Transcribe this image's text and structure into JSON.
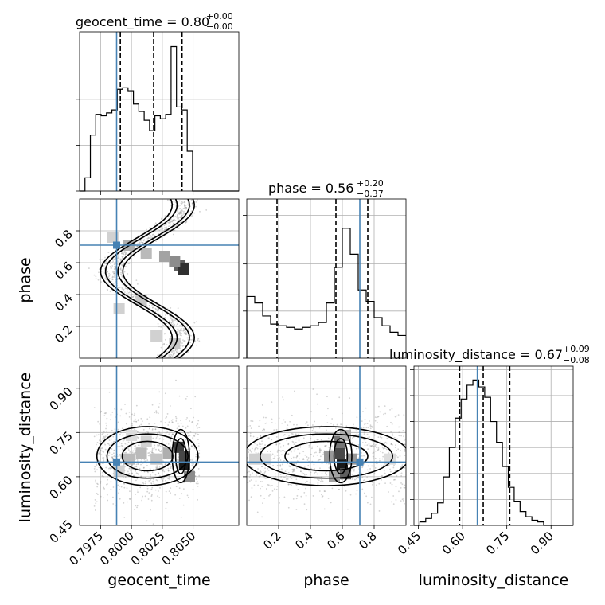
{
  "chart_data": {
    "type": "corner",
    "parameters": [
      "geocent_time",
      "phase",
      "luminosity_distance"
    ],
    "truth": {
      "geocent_time": 0.7988,
      "phase": 0.71,
      "luminosity_distance": 0.65
    },
    "titles": {
      "geocent_time": {
        "label": "geocent_time = 0.80",
        "plus": "+0.00",
        "minus": "−0.00"
      },
      "phase": {
        "label": "phase = 0.56",
        "plus": "+0.20",
        "minus": "−0.37"
      },
      "luminosity_distance": {
        "label": "luminosity_distance = 0.67",
        "plus": "+0.09",
        "minus": "−0.08"
      }
    },
    "axis_labels": {
      "geocent_time": "geocent_time",
      "phase": "phase",
      "luminosity_distance": "luminosity_distance"
    },
    "ranges": {
      "geocent_time": [
        0.7958,
        0.8087
      ],
      "phase": [
        0.0,
        1.0
      ],
      "luminosity_distance": [
        0.435,
        0.975
      ]
    },
    "ticks": {
      "geocent_time": {
        "values": [
          0.7975,
          0.8,
          0.8025,
          0.805
        ],
        "labels": [
          "0.7975",
          "0.8000",
          "0.8025",
          "0.8050"
        ]
      },
      "phase": {
        "values": [
          0.2,
          0.4,
          0.6,
          0.8
        ],
        "labels": [
          "0.2",
          "0.4",
          "0.6",
          "0.8"
        ]
      },
      "luminosity_distance": {
        "values": [
          0.45,
          0.6,
          0.75,
          0.9
        ],
        "labels": [
          "0.45",
          "0.60",
          "0.75",
          "0.90"
        ]
      }
    },
    "quantiles": {
      "geocent_time": [
        0.7991,
        0.8018,
        0.8041
      ],
      "phase": [
        0.19,
        0.56,
        0.76
      ],
      "luminosity_distance": [
        0.59,
        0.67,
        0.76
      ]
    },
    "histograms": {
      "geocent_time": {
        "x0": 0.7958,
        "bin": 0.000436,
        "counts": [
          0.0,
          0.09,
          0.38,
          0.52,
          0.51,
          0.53,
          0.55,
          0.69,
          0.7,
          0.68,
          0.59,
          0.54,
          0.48,
          0.41,
          0.51,
          0.49,
          0.52,
          0.98,
          0.57,
          0.55,
          0.27,
          0.0,
          0.0,
          0.0,
          0.0,
          0.0,
          0.0,
          0.0,
          0.0,
          0.0
        ]
      },
      "phase": {
        "x0": 0.0,
        "bin": 0.05,
        "counts": [
          0.38,
          0.34,
          0.26,
          0.21,
          0.2,
          0.19,
          0.18,
          0.19,
          0.2,
          0.22,
          0.34,
          0.56,
          0.8,
          0.64,
          0.42,
          0.35,
          0.25,
          0.2,
          0.16,
          0.14
        ]
      },
      "luminosity_distance": {
        "x0": 0.435,
        "bin": 0.02,
        "counts": [
          0.0,
          0.02,
          0.04,
          0.07,
          0.13,
          0.28,
          0.45,
          0.62,
          0.73,
          0.81,
          0.84,
          0.8,
          0.74,
          0.6,
          0.48,
          0.34,
          0.22,
          0.14,
          0.08,
          0.05,
          0.03,
          0.02,
          0.0,
          0.0,
          0.0,
          0.0,
          0.0
        ]
      }
    },
    "hist_ylim": {
      "geocent_time": 1.08,
      "phase": 0.98,
      "luminosity_distance": 0.92
    },
    "hist_yticks": {
      "geocent_time": [
        0.0,
        0.31,
        0.62
      ],
      "phase": [
        0.0,
        0.29,
        0.58,
        0.88
      ],
      "luminosity_distance": [
        0.0,
        0.15,
        0.3,
        0.45,
        0.6,
        0.75,
        0.9
      ]
    },
    "density_cells": {
      "phase_vs_geocent_time": [
        {
          "x": 0.8039,
          "y": 0.58,
          "v": 0.7
        },
        {
          "x": 0.8042,
          "y": 0.56,
          "v": 0.9
        },
        {
          "x": 0.8035,
          "y": 0.61,
          "v": 0.5
        },
        {
          "x": 0.8027,
          "y": 0.64,
          "v": 0.4
        },
        {
          "x": 0.8012,
          "y": 0.66,
          "v": 0.3
        },
        {
          "x": 0.7998,
          "y": 0.71,
          "v": 0.35
        },
        {
          "x": 0.7985,
          "y": 0.76,
          "v": 0.2
        },
        {
          "x": 0.799,
          "y": 0.31,
          "v": 0.2
        },
        {
          "x": 0.8008,
          "y": 0.36,
          "v": 0.25
        },
        {
          "x": 0.802,
          "y": 0.14,
          "v": 0.2
        },
        {
          "x": 0.8035,
          "y": 0.09,
          "v": 0.25
        }
      ],
      "luminosity_distance_vs_geocent_time": [
        {
          "x": 0.8038,
          "y": 0.7,
          "v": 0.85
        },
        {
          "x": 0.8043,
          "y": 0.64,
          "v": 1.0
        },
        {
          "x": 0.8043,
          "y": 0.67,
          "v": 0.8
        },
        {
          "x": 0.8047,
          "y": 0.6,
          "v": 0.5
        },
        {
          "x": 0.803,
          "y": 0.68,
          "v": 0.35
        },
        {
          "x": 0.802,
          "y": 0.66,
          "v": 0.25
        },
        {
          "x": 0.8008,
          "y": 0.68,
          "v": 0.3
        },
        {
          "x": 0.7998,
          "y": 0.66,
          "v": 0.3
        },
        {
          "x": 0.799,
          "y": 0.62,
          "v": 0.2
        },
        {
          "x": 0.8012,
          "y": 0.72,
          "v": 0.2
        },
        {
          "x": 0.8,
          "y": 0.74,
          "v": 0.15
        }
      ],
      "luminosity_distance_vs_phase": [
        {
          "x": 0.58,
          "y": 0.68,
          "v": 0.8
        },
        {
          "x": 0.6,
          "y": 0.64,
          "v": 1.0
        },
        {
          "x": 0.58,
          "y": 0.72,
          "v": 0.6
        },
        {
          "x": 0.62,
          "y": 0.61,
          "v": 0.7
        },
        {
          "x": 0.52,
          "y": 0.67,
          "v": 0.45
        },
        {
          "x": 0.66,
          "y": 0.66,
          "v": 0.45
        },
        {
          "x": 0.55,
          "y": 0.6,
          "v": 0.4
        },
        {
          "x": 0.62,
          "y": 0.74,
          "v": 0.35
        },
        {
          "x": 0.05,
          "y": 0.66,
          "v": 0.2
        },
        {
          "x": 0.12,
          "y": 0.66,
          "v": 0.15
        },
        {
          "x": 0.9,
          "y": 0.66,
          "v": 0.15
        }
      ]
    },
    "colors": {
      "truth": "#4682b4",
      "hist": "#000000",
      "grid": "#b0b0b0",
      "scatter": "#808080"
    }
  }
}
